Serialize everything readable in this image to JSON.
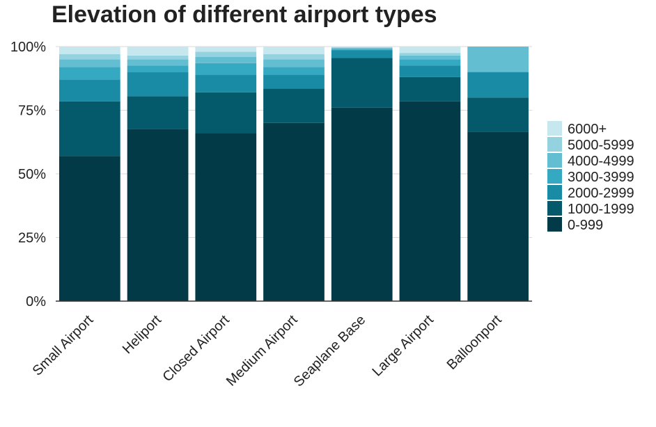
{
  "chart_data": {
    "type": "bar",
    "stacked": true,
    "percent": true,
    "title": "Elevation of different airport types",
    "xlabel": "",
    "ylabel": "",
    "ylim": [
      0,
      1
    ],
    "yticks": [
      "0%",
      "25%",
      "50%",
      "75%",
      "100%"
    ],
    "grid": "horizontal",
    "legend_position": "right",
    "categories": [
      "Small Airport",
      "Heliport",
      "Closed Airport",
      "Medium Airport",
      "Seaplane Base",
      "Large Airport",
      "Balloonport"
    ],
    "series": [
      {
        "name": "0-999",
        "color": "#023a48",
        "values": [
          0.57,
          0.675,
          0.66,
          0.7,
          0.76,
          0.785,
          0.665
        ]
      },
      {
        "name": "1000-1999",
        "color": "#045a6a",
        "values": [
          0.215,
          0.13,
          0.16,
          0.135,
          0.195,
          0.095,
          0.135
        ]
      },
      {
        "name": "2000-2999",
        "color": "#1a8ba4",
        "values": [
          0.085,
          0.095,
          0.07,
          0.055,
          0.03,
          0.045,
          0.1
        ]
      },
      {
        "name": "3000-3999",
        "color": "#35a8c2",
        "values": [
          0.05,
          0.025,
          0.045,
          0.03,
          0.005,
          0.025,
          0.0
        ]
      },
      {
        "name": "4000-4999",
        "color": "#63bed1",
        "values": [
          0.03,
          0.025,
          0.025,
          0.03,
          0.005,
          0.015,
          0.1
        ]
      },
      {
        "name": "5000-5999",
        "color": "#94d2df",
        "values": [
          0.02,
          0.015,
          0.02,
          0.02,
          0.003,
          0.01,
          0.0
        ]
      },
      {
        "name": "6000+",
        "color": "#c6e7ee",
        "values": [
          0.03,
          0.035,
          0.02,
          0.03,
          0.002,
          0.025,
          0.0
        ]
      }
    ],
    "legend_order": [
      "6000+",
      "5000-5999",
      "4000-4999",
      "3000-3999",
      "2000-2999",
      "1000-1999",
      "0-999"
    ]
  }
}
